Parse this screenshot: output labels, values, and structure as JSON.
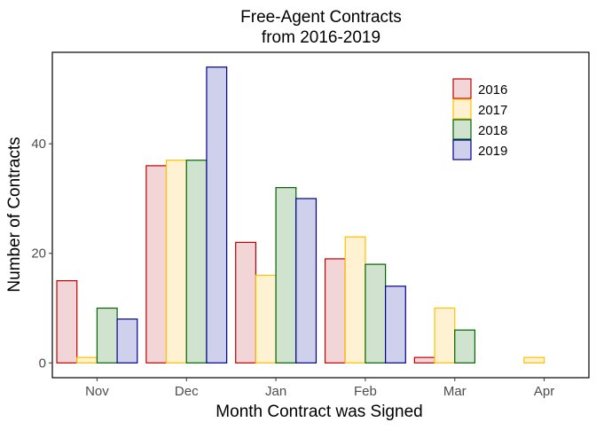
{
  "chart_data": {
    "type": "bar",
    "title": "Free-Agent Contracts",
    "subtitle": "from 2016-2019",
    "xlabel": "Month Contract was Signed",
    "ylabel": "Number of Contracts",
    "categories": [
      "Nov",
      "Dec",
      "Jan",
      "Feb",
      "Mar",
      "Apr"
    ],
    "yticks": [
      "0",
      "20",
      "40"
    ],
    "ytick_values": [
      0,
      20,
      40
    ],
    "ylim": [
      -2.7,
      56.7
    ],
    "grid": false,
    "legend_position": "top-right",
    "series": [
      {
        "name": "2016",
        "fill": "#f2d5d7",
        "stroke": "#c00000",
        "values": [
          15,
          36,
          22,
          19,
          1,
          null
        ]
      },
      {
        "name": "2017",
        "fill": "#fff2d3",
        "stroke": "#ffc000",
        "values": [
          1,
          37,
          16,
          23,
          10,
          1
        ]
      },
      {
        "name": "2018",
        "fill": "#d0e3cf",
        "stroke": "#006400",
        "values": [
          10,
          37,
          32,
          18,
          6,
          null
        ]
      },
      {
        "name": "2019",
        "fill": "#cfd0ec",
        "stroke": "#00008b",
        "values": [
          8,
          54,
          30,
          14,
          null,
          null
        ]
      }
    ]
  }
}
